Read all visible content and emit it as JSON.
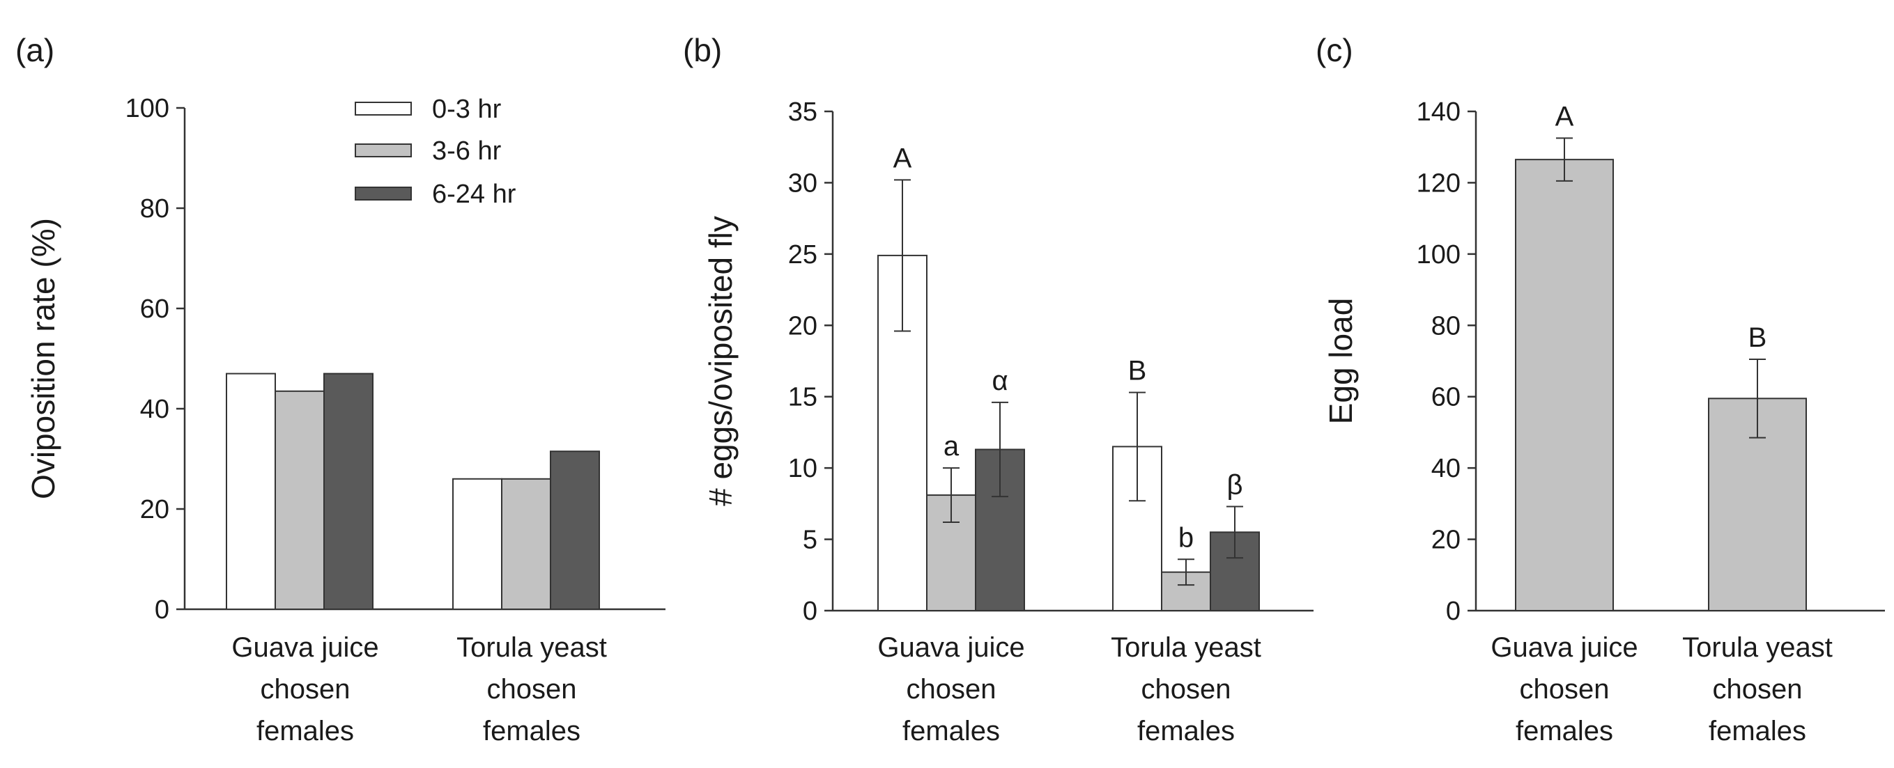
{
  "colors": {
    "0-3 hr": "#ffffff",
    "3-6 hr": "#c2c2c2",
    "6-24 hr": "#5a5a5a",
    "single": "#c2c2c2"
  },
  "chart_data": [
    {
      "panel_label": "(a)",
      "type": "bar",
      "title": "",
      "xlabel": "",
      "ylabel": "Oviposition rate (%)",
      "ylim": [
        0,
        100
      ],
      "yticks": [
        0,
        20,
        40,
        60,
        80,
        100
      ],
      "categories": [
        [
          "Guava juice",
          "chosen",
          "females"
        ],
        [
          "Torula yeast",
          "chosen",
          "females"
        ]
      ],
      "legend": {
        "position": "top-right",
        "entries": [
          "0-3 hr",
          "3-6 hr",
          "6-24 hr"
        ]
      },
      "series": [
        {
          "name": "0-3 hr",
          "values": [
            47,
            26
          ]
        },
        {
          "name": "3-6 hr",
          "values": [
            43.5,
            26
          ]
        },
        {
          "name": "6-24 hr",
          "values": [
            47,
            31.5
          ]
        }
      ]
    },
    {
      "panel_label": "(b)",
      "type": "bar",
      "title": "",
      "xlabel": "",
      "ylabel": "# eggs/oviposited fly",
      "ylim": [
        0,
        35
      ],
      "yticks": [
        0,
        5,
        10,
        15,
        20,
        25,
        30,
        35
      ],
      "categories": [
        [
          "Guava juice",
          "chosen",
          "females"
        ],
        [
          "Torula yeast",
          "chosen",
          "females"
        ]
      ],
      "series": [
        {
          "name": "0-3 hr",
          "values": [
            24.9,
            11.5
          ],
          "errors": [
            5.3,
            3.8
          ],
          "letters": [
            "A",
            "B"
          ]
        },
        {
          "name": "3-6 hr",
          "values": [
            8.1,
            2.7
          ],
          "errors": [
            1.9,
            0.9
          ],
          "letters": [
            "a",
            "b"
          ]
        },
        {
          "name": "6-24 hr",
          "values": [
            11.3,
            5.5
          ],
          "errors": [
            3.3,
            1.8
          ],
          "letters": [
            "α",
            "β"
          ]
        }
      ]
    },
    {
      "panel_label": "(c)",
      "type": "bar",
      "title": "",
      "xlabel": "",
      "ylabel": "Egg load",
      "ylim": [
        0,
        140
      ],
      "yticks": [
        0,
        20,
        40,
        60,
        80,
        100,
        120,
        140
      ],
      "categories": [
        [
          "Guava juice",
          "chosen",
          "females"
        ],
        [
          "Torula yeast",
          "chosen",
          "females"
        ]
      ],
      "series": [
        {
          "name": "Egg load",
          "values": [
            126.5,
            59.5
          ],
          "errors": [
            6,
            11
          ],
          "letters": [
            "A",
            "B"
          ]
        }
      ]
    }
  ]
}
